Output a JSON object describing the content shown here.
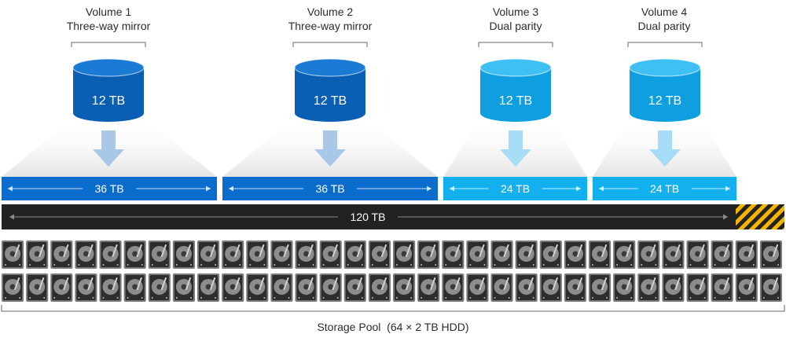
{
  "colors": {
    "mirror_dark": "#0a5fb4",
    "mirror_bar": "#0a6ccd",
    "parity_dark": "#0f9fe0",
    "parity_bar": "#12b0ef",
    "pool_bar": "#222222",
    "hazard_yellow": "#f5b400",
    "disk_gray": "#7a7a7a"
  },
  "volumes": [
    {
      "name": "Volume 1",
      "resiliency": "Three-way mirror",
      "size": "12 TB",
      "footprint": "36 TB",
      "kind": "mirror"
    },
    {
      "name": "Volume 2",
      "resiliency": "Three-way mirror",
      "size": "12 TB",
      "footprint": "36 TB",
      "kind": "mirror"
    },
    {
      "name": "Volume 3",
      "resiliency": "Dual parity",
      "size": "12 TB",
      "footprint": "24 TB",
      "kind": "parity"
    },
    {
      "name": "Volume 4",
      "resiliency": "Dual parity",
      "size": "12 TB",
      "footprint": "24 TB",
      "kind": "parity"
    }
  ],
  "pool": {
    "capacity": "120 TB",
    "label": "Storage Pool  (64 × 2 TB HDD)",
    "disk_count": 64,
    "icons": {
      "disk": "hard-disk-icon",
      "reserve": "hazard-stripes"
    }
  }
}
